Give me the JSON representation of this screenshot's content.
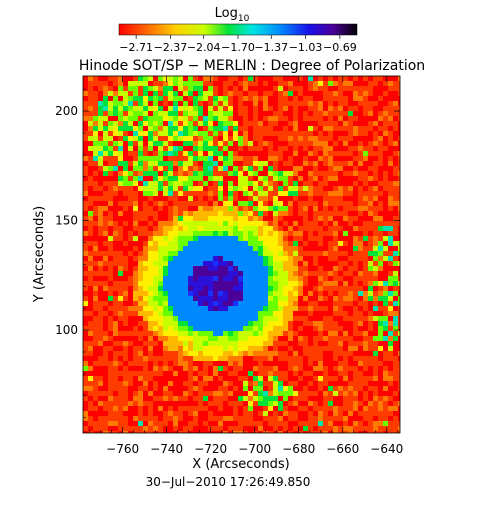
{
  "chart_data": {
    "type": "heatmap",
    "title": "Hinode SOT/SP − MERLIN : Degree of Polarization",
    "xlabel": "X (Arcseconds)",
    "ylabel": "Y (Arcseconds)",
    "timestamp": "30−Jul−2010 17:26:49.850",
    "xlim": [
      -778,
      -634
    ],
    "ylim": [
      53,
      216
    ],
    "xticks": [
      -760,
      -740,
      -720,
      -700,
      -680,
      -660,
      -640
    ],
    "xtick_labels": [
      "−760",
      "−740",
      "−720",
      "−700",
      "−680",
      "−660",
      "−640"
    ],
    "yticks": [
      100,
      150,
      200
    ],
    "ytick_labels": [
      "100",
      "150",
      "200"
    ],
    "colorbar": {
      "label": "Log",
      "label_subscript": "10",
      "colormap": "rainbow (red = low, violet/black = high)",
      "range": [
        -2.88,
        -0.52
      ],
      "ticks": [
        -2.71,
        -2.37,
        -2.04,
        -1.7,
        -1.37,
        -1.03,
        -0.69
      ],
      "tick_labels": [
        "−2.71",
        "−2.37",
        "−2.04",
        "−1.70",
        "−1.37",
        "−1.03",
        "−0.69"
      ]
    },
    "features": [
      {
        "kind": "sunspot",
        "center": [
          -718,
          122
        ],
        "note": "umbra dark violet, penumbra blue, surrounded by green/yellow"
      },
      {
        "kind": "plage",
        "region": "upper-left, x -775 to -705, y 165 to 215, yellow/green"
      },
      {
        "kind": "network",
        "region": "right edge near x -640, y 80 to 170, green/yellow patches"
      }
    ],
    "background_level": -2.71
  }
}
